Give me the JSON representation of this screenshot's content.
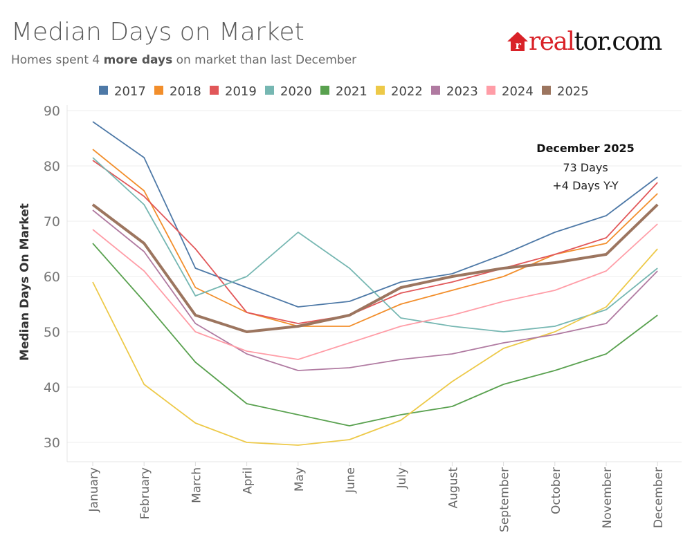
{
  "header": {
    "title": "Median Days on Market",
    "subtitle_pre": "Homes spent 4 ",
    "subtitle_bold": "more days",
    "subtitle_post": " on market than last December",
    "logo_text": "realtor.com"
  },
  "chart_data": {
    "type": "line",
    "title": "Median Days on Market",
    "ylabel": "Median Days On Market",
    "xlabel": "",
    "ylim": [
      30,
      90
    ],
    "yticks": [
      30,
      40,
      50,
      60,
      70,
      80,
      90
    ],
    "grid": true,
    "legend_position": "top",
    "categories": [
      "January",
      "February",
      "March",
      "April",
      "May",
      "June",
      "July",
      "August",
      "September",
      "October",
      "November",
      "December"
    ],
    "series": [
      {
        "name": "2017",
        "color": "#4e79a7",
        "values": [
          88,
          81.5,
          61.5,
          58,
          54.5,
          55.5,
          59,
          60.5,
          64,
          68,
          71,
          78
        ]
      },
      {
        "name": "2018",
        "color": "#f28e2b",
        "values": [
          83,
          75.5,
          58,
          53.5,
          51,
          51,
          55,
          57.5,
          60,
          64,
          66,
          75
        ]
      },
      {
        "name": "2019",
        "color": "#e15759",
        "values": [
          81,
          74.5,
          65,
          53.5,
          51.5,
          53,
          57,
          59,
          61.5,
          64,
          67,
          77
        ]
      },
      {
        "name": "2020",
        "color": "#76b7b2",
        "values": [
          81.5,
          73,
          56.5,
          60,
          68,
          61.5,
          52.5,
          51,
          50,
          51,
          54,
          61.5
        ]
      },
      {
        "name": "2021",
        "color": "#59a14f",
        "values": [
          66,
          55.5,
          44.5,
          37,
          35,
          33,
          35,
          36.5,
          40.5,
          43,
          46,
          53
        ]
      },
      {
        "name": "2022",
        "color": "#edc948",
        "values": [
          59,
          40.5,
          33.5,
          30,
          29.5,
          30.5,
          34,
          41,
          47,
          50,
          54.5,
          65
        ]
      },
      {
        "name": "2023",
        "color": "#b07aa1",
        "values": [
          72,
          64.5,
          51.5,
          46,
          43,
          43.5,
          45,
          46,
          48,
          49.5,
          51.5,
          61
        ]
      },
      {
        "name": "2024",
        "color": "#ff9da7",
        "values": [
          68.5,
          61,
          50,
          46.5,
          45,
          48,
          51,
          53,
          55.5,
          57.5,
          61,
          69.5
        ]
      },
      {
        "name": "2025",
        "color": "#9c755f",
        "values": [
          73,
          66,
          53,
          50,
          51,
          53,
          58,
          60,
          61.5,
          62.5,
          64,
          73
        ]
      }
    ],
    "annotation": {
      "title": "December 2025",
      "line1": "73 Days",
      "line2": "+4 Days Y-Y"
    }
  }
}
